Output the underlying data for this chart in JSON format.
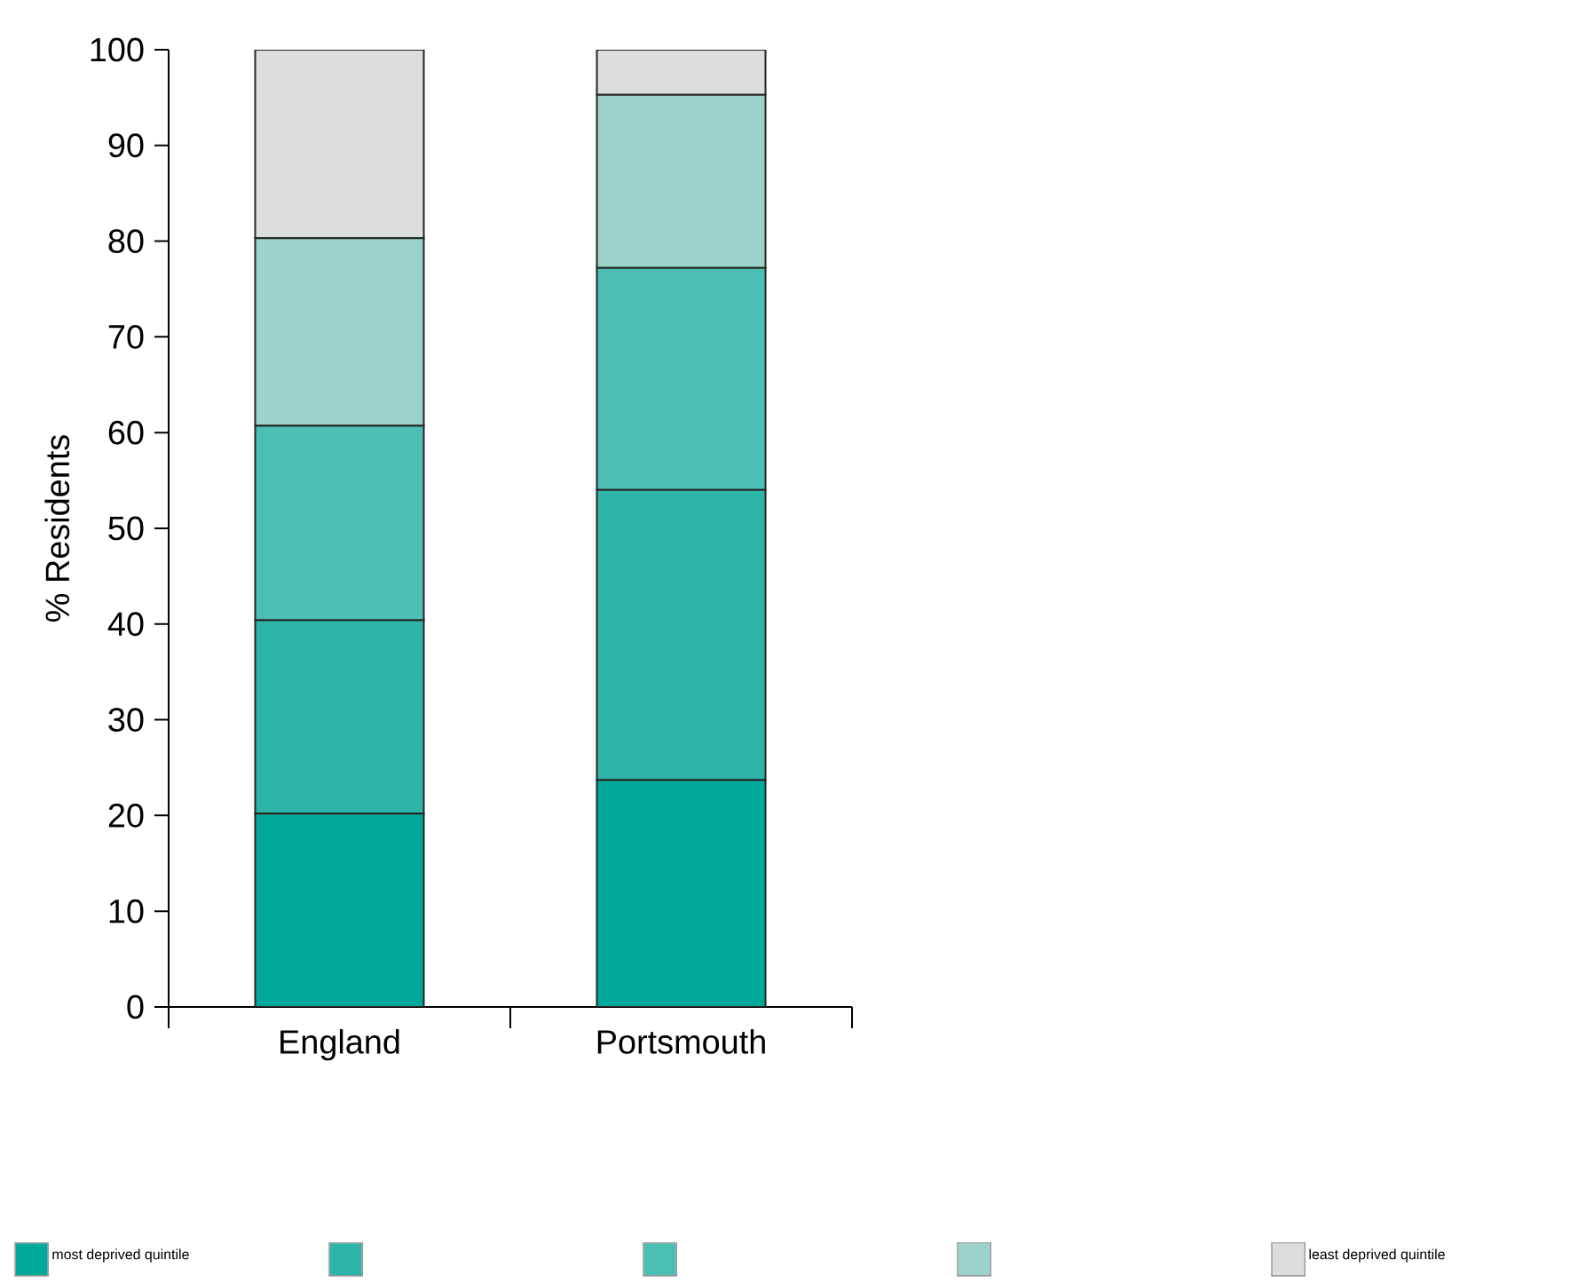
{
  "chart_data": {
    "type": "bar",
    "stacked": true,
    "ylabel": "% Residents",
    "categories": [
      "England",
      "Portsmouth"
    ],
    "series": [
      {
        "name": "most deprived quintile",
        "color": "#00a99a",
        "values": [
          20.2,
          23.7
        ]
      },
      {
        "color": "#2db5a8",
        "values": [
          20.2,
          30.3
        ]
      },
      {
        "color": "#4bbfb3",
        "values": [
          20.3,
          23.2
        ]
      },
      {
        "color": "#9bd3cb",
        "values": [
          19.6,
          18.1
        ]
      },
      {
        "name": "least deprived quintile",
        "color": "#dcdddf",
        "values": [
          19.7,
          4.7
        ]
      }
    ],
    "ylim": [
      0,
      100
    ],
    "yticks": [
      0,
      10,
      20,
      30,
      40,
      50,
      60,
      70,
      80,
      90,
      100
    ],
    "legend": "bottom"
  }
}
